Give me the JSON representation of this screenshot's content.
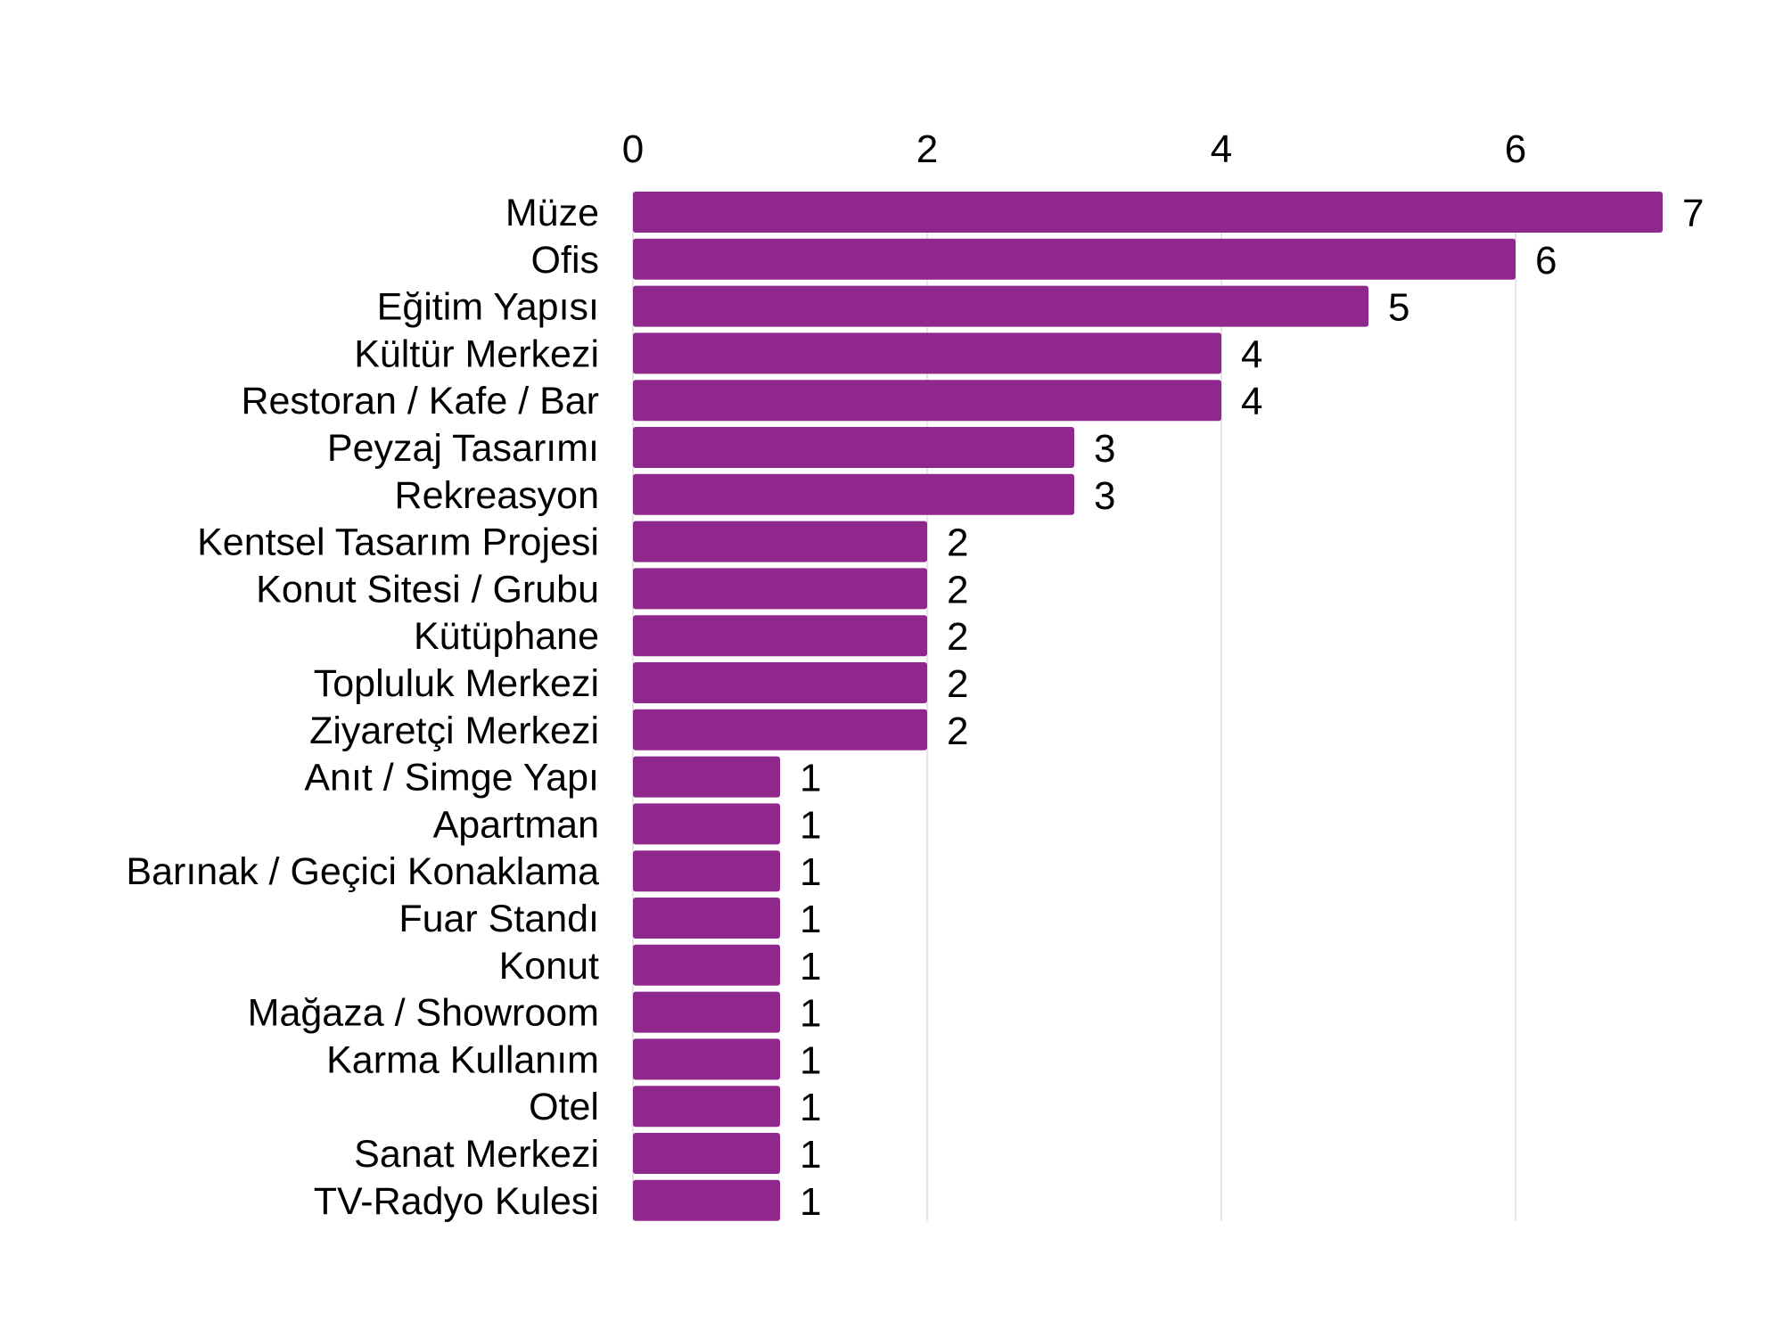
{
  "chart_data": {
    "type": "bar",
    "orientation": "horizontal",
    "title": "",
    "xlabel": "",
    "ylabel": "",
    "categories": [
      "Müze",
      "Ofis",
      "Eğitim Yapısı",
      "Kültür Merkezi",
      "Restoran / Kafe / Bar",
      "Peyzaj Tasarımı",
      "Rekreasyon",
      "Kentsel Tasarım Projesi",
      "Konut Sitesi / Grubu",
      "Kütüphane",
      "Topluluk Merkezi",
      "Ziyaretçi Merkezi",
      "Anıt / Simge Yapı",
      "Apartman",
      "Barınak / Geçici Konaklama",
      "Fuar Standı",
      "Konut",
      "Mağaza / Showroom",
      "Karma Kullanım",
      "Otel",
      "Sanat Merkezi",
      "TV-Radyo Kulesi"
    ],
    "values": [
      7,
      6,
      5,
      4,
      4,
      3,
      3,
      2,
      2,
      2,
      2,
      2,
      1,
      1,
      1,
      1,
      1,
      1,
      1,
      1,
      1,
      1
    ],
    "xlim": [
      0,
      7
    ],
    "xticks": [
      0,
      2,
      4,
      6
    ],
    "x_axis_position": "top",
    "grid": true,
    "legend": "none",
    "colors": {
      "bar": "#90278c",
      "grid": "#e6e6e6",
      "text": "#000000"
    }
  }
}
